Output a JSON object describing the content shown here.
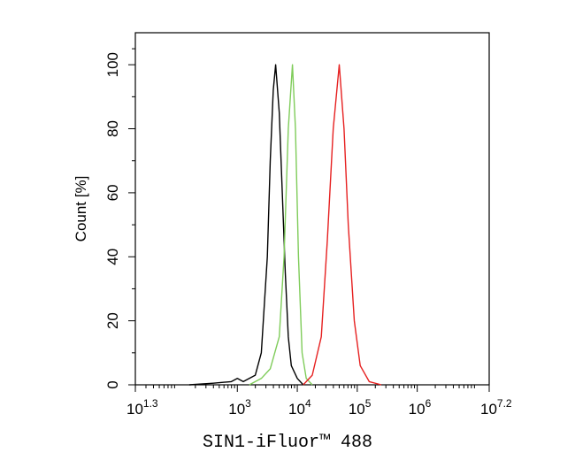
{
  "chart_data": {
    "type": "line",
    "xlabel": "SIN1-iFluor™ 488",
    "ylabel": "Count [%]",
    "xscale": "log",
    "xlim": [
      19.95,
      15848932
    ],
    "xticks": [
      {
        "value": 19.95,
        "label": "10",
        "exponent": "1.3"
      },
      {
        "value": 1000,
        "label": "10",
        "exponent": "3"
      },
      {
        "value": 10000,
        "label": "10",
        "exponent": "4"
      },
      {
        "value": 100000,
        "label": "10",
        "exponent": "5"
      },
      {
        "value": 1000000,
        "label": "10",
        "exponent": "6"
      },
      {
        "value": 15848932,
        "label": "10",
        "exponent": "7.2"
      }
    ],
    "x_minor_ticks": true,
    "ylim": [
      0,
      110
    ],
    "yticks": [
      0,
      20,
      40,
      60,
      80,
      100
    ],
    "y_minor_ticks": true,
    "series": [
      {
        "color": "#000000",
        "x": [
          158,
          398,
          794,
          1000,
          1259,
          1995,
          2512,
          3162,
          3548,
          3981,
          4365,
          5012,
          5623,
          6310,
          7079,
          7943,
          10000,
          12589
        ],
        "values": [
          0,
          0.5,
          1,
          2,
          1,
          3,
          10,
          40,
          70,
          92,
          100,
          85,
          60,
          35,
          15,
          6,
          2,
          0
        ]
      },
      {
        "color": "#7fcc5a",
        "x": [
          1585,
          2512,
          3548,
          5012,
          6026,
          7079,
          8318,
          9333,
          10471,
          12023,
          14125,
          17783
        ],
        "values": [
          0,
          2,
          5,
          15,
          40,
          80,
          100,
          80,
          40,
          10,
          2,
          0
        ]
      },
      {
        "color": "#e62020",
        "x": [
          12589,
          17783,
          25119,
          31623,
          39811,
          50119,
          60256,
          70795,
          89125,
          112202,
          158489,
          251189
        ],
        "values": [
          0,
          3,
          15,
          45,
          80,
          100,
          80,
          50,
          20,
          6,
          1,
          0
        ]
      }
    ]
  }
}
